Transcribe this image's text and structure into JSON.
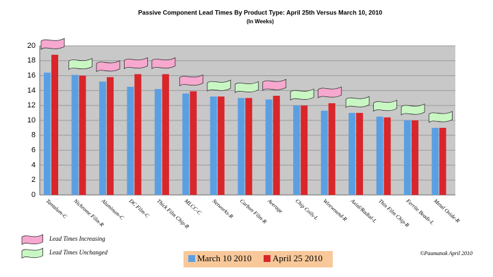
{
  "chart_data": {
    "type": "bar",
    "title": "Passive Component Lead Times By Product Type: April 25th Versus March 10, 2010",
    "subtitle": "(In Weeks)",
    "categories": [
      "Tantalum-C",
      "Nichrome Film-R",
      "Aluminum-C",
      "DC Film-C",
      "Thick Film Chip-R",
      "MLCC-C",
      "Networks-R",
      "Carbon Film-R",
      "Average",
      "Chip Coils-L",
      "Wirewound-R",
      "Axial/Radial-L",
      "Thin Film Chip-R",
      "Ferrite Beads-L",
      "Metal Oxide-R"
    ],
    "series": [
      {
        "name": "March 10 2010",
        "color": "#5b9fe3",
        "values": [
          16.4,
          16.1,
          15.2,
          14.5,
          14.2,
          13.6,
          13.2,
          13.0,
          12.8,
          12.0,
          11.3,
          11.0,
          10.5,
          10.0,
          9.0
        ]
      },
      {
        "name": "April 25 2010",
        "color": "#d8262b",
        "values": [
          18.8,
          16.0,
          15.8,
          16.2,
          16.2,
          13.9,
          13.2,
          13.0,
          13.3,
          12.0,
          12.3,
          11.0,
          10.4,
          10.0,
          9.0
        ]
      }
    ],
    "ylim": [
      0,
      20
    ],
    "yticks": [
      0,
      2,
      4,
      6,
      8,
      10,
      12,
      14,
      16,
      18,
      20
    ],
    "grid": true,
    "flag_legend": [
      {
        "label": "Lead Times Increasing",
        "color": "#f7a8cf"
      },
      {
        "label": "Lead Times Unchanged",
        "color": "#c9f7c4"
      }
    ],
    "flags": [
      0,
      1,
      0,
      0,
      0,
      0,
      1,
      1,
      0,
      1,
      0,
      1,
      1,
      1,
      1
    ],
    "credit": "©Paumanok April 2010"
  }
}
